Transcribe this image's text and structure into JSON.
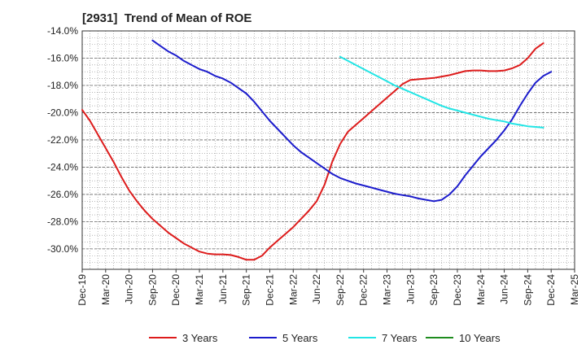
{
  "header": {
    "title": "[2931]  Trend of Mean of ROE"
  },
  "chart_data": {
    "type": "line",
    "title": "[2931]  Trend of Mean of ROE",
    "xlabel": "",
    "ylabel": "",
    "ylim": [
      -31.5,
      -14.0
    ],
    "y_ticks": [
      -14.0,
      -16.0,
      -18.0,
      -20.0,
      -22.0,
      -24.0,
      -26.0,
      -28.0,
      -30.0
    ],
    "y_tick_labels": [
      "-14.0%",
      "-16.0%",
      "-18.0%",
      "-20.0%",
      "-22.0%",
      "-24.0%",
      "-26.0%",
      "-28.0%",
      "-30.0%"
    ],
    "x_tick_labels": [
      "Dec-19",
      "Mar-20",
      "Jun-20",
      "Sep-20",
      "Dec-20",
      "Mar-21",
      "Jun-21",
      "Sep-21",
      "Dec-21",
      "Mar-22",
      "Jun-22",
      "Sep-22",
      "Dec-22",
      "Mar-23",
      "Jun-23",
      "Sep-23",
      "Dec-23",
      "Mar-24",
      "Jun-24",
      "Sep-24",
      "Dec-24",
      "Mar-25"
    ],
    "x_start": "Dec-19",
    "x_end": "Mar-25",
    "grid": true,
    "legend_position": "bottom",
    "series": [
      {
        "name": "3 Years",
        "color": "#dd1c1c",
        "points": [
          [
            "Dec-19",
            -19.8
          ],
          [
            "Jan-20",
            -20.6
          ],
          [
            "Feb-20",
            -21.6
          ],
          [
            "Mar-20",
            -22.6
          ],
          [
            "Apr-20",
            -23.6
          ],
          [
            "May-20",
            -24.7
          ],
          [
            "Jun-20",
            -25.7
          ],
          [
            "Jul-20",
            -26.5
          ],
          [
            "Aug-20",
            -27.2
          ],
          [
            "Sep-20",
            -27.8
          ],
          [
            "Oct-20",
            -28.3
          ],
          [
            "Nov-20",
            -28.8
          ],
          [
            "Dec-20",
            -29.2
          ],
          [
            "Jan-21",
            -29.6
          ],
          [
            "Feb-21",
            -29.9
          ],
          [
            "Mar-21",
            -30.2
          ],
          [
            "Apr-21",
            -30.35
          ],
          [
            "May-21",
            -30.4
          ],
          [
            "Jun-21",
            -30.4
          ],
          [
            "Jul-21",
            -30.45
          ],
          [
            "Aug-21",
            -30.6
          ],
          [
            "Sep-21",
            -30.8
          ],
          [
            "Oct-21",
            -30.8
          ],
          [
            "Nov-21",
            -30.5
          ],
          [
            "Dec-21",
            -29.9
          ],
          [
            "Jan-22",
            -29.4
          ],
          [
            "Feb-22",
            -28.9
          ],
          [
            "Mar-22",
            -28.4
          ],
          [
            "Apr-22",
            -27.8
          ],
          [
            "May-22",
            -27.2
          ],
          [
            "Jun-22",
            -26.5
          ],
          [
            "Jul-22",
            -25.3
          ],
          [
            "Aug-22",
            -23.6
          ],
          [
            "Sep-22",
            -22.3
          ],
          [
            "Oct-22",
            -21.4
          ],
          [
            "Nov-22",
            -20.9
          ],
          [
            "Dec-22",
            -20.4
          ],
          [
            "Jan-23",
            -19.9
          ],
          [
            "Feb-23",
            -19.4
          ],
          [
            "Mar-23",
            -18.9
          ],
          [
            "Apr-23",
            -18.4
          ],
          [
            "May-23",
            -17.9
          ],
          [
            "Jun-23",
            -17.6
          ],
          [
            "Jul-23",
            -17.55
          ],
          [
            "Aug-23",
            -17.5
          ],
          [
            "Sep-23",
            -17.45
          ],
          [
            "Oct-23",
            -17.35
          ],
          [
            "Nov-23",
            -17.25
          ],
          [
            "Dec-23",
            -17.1
          ],
          [
            "Jan-24",
            -16.95
          ],
          [
            "Feb-24",
            -16.9
          ],
          [
            "Mar-24",
            -16.9
          ],
          [
            "Apr-24",
            -16.95
          ],
          [
            "May-24",
            -16.95
          ],
          [
            "Jun-24",
            -16.9
          ],
          [
            "Jul-24",
            -16.75
          ],
          [
            "Aug-24",
            -16.5
          ],
          [
            "Sep-24",
            -16.0
          ],
          [
            "Oct-24",
            -15.3
          ],
          [
            "Nov-24",
            -14.9
          ]
        ]
      },
      {
        "name": "5 Years",
        "color": "#1c1ccc",
        "points": [
          [
            "Sep-20",
            -14.7
          ],
          [
            "Oct-20",
            -15.1
          ],
          [
            "Nov-20",
            -15.5
          ],
          [
            "Dec-20",
            -15.8
          ],
          [
            "Jan-21",
            -16.2
          ],
          [
            "Feb-21",
            -16.5
          ],
          [
            "Mar-21",
            -16.8
          ],
          [
            "Apr-21",
            -17.0
          ],
          [
            "May-21",
            -17.3
          ],
          [
            "Jun-21",
            -17.5
          ],
          [
            "Jul-21",
            -17.8
          ],
          [
            "Aug-21",
            -18.2
          ],
          [
            "Sep-21",
            -18.6
          ],
          [
            "Oct-21",
            -19.2
          ],
          [
            "Nov-21",
            -19.9
          ],
          [
            "Dec-21",
            -20.6
          ],
          [
            "Jan-22",
            -21.2
          ],
          [
            "Feb-22",
            -21.8
          ],
          [
            "Mar-22",
            -22.4
          ],
          [
            "Apr-22",
            -22.9
          ],
          [
            "May-22",
            -23.3
          ],
          [
            "Jun-22",
            -23.7
          ],
          [
            "Jul-22",
            -24.1
          ],
          [
            "Aug-22",
            -24.5
          ],
          [
            "Sep-22",
            -24.8
          ],
          [
            "Oct-22",
            -25.0
          ],
          [
            "Nov-22",
            -25.2
          ],
          [
            "Dec-22",
            -25.35
          ],
          [
            "Jan-23",
            -25.5
          ],
          [
            "Feb-23",
            -25.65
          ],
          [
            "Mar-23",
            -25.8
          ],
          [
            "Apr-23",
            -25.95
          ],
          [
            "May-23",
            -26.05
          ],
          [
            "Jun-23",
            -26.15
          ],
          [
            "Jul-23",
            -26.3
          ],
          [
            "Aug-23",
            -26.4
          ],
          [
            "Sep-23",
            -26.5
          ],
          [
            "Oct-23",
            -26.4
          ],
          [
            "Nov-23",
            -26.0
          ],
          [
            "Dec-23",
            -25.4
          ],
          [
            "Jan-24",
            -24.6
          ],
          [
            "Feb-24",
            -23.9
          ],
          [
            "Mar-24",
            -23.2
          ],
          [
            "Apr-24",
            -22.6
          ],
          [
            "May-24",
            -22.0
          ],
          [
            "Jun-24",
            -21.3
          ],
          [
            "Jul-24",
            -20.5
          ],
          [
            "Aug-24",
            -19.5
          ],
          [
            "Sep-24",
            -18.6
          ],
          [
            "Oct-24",
            -17.8
          ],
          [
            "Nov-24",
            -17.3
          ],
          [
            "Dec-24",
            -17.0
          ]
        ]
      },
      {
        "name": "7 Years",
        "color": "#22e5e5",
        "points": [
          [
            "Sep-22",
            -15.9
          ],
          [
            "Oct-22",
            -16.2
          ],
          [
            "Nov-22",
            -16.5
          ],
          [
            "Dec-22",
            -16.8
          ],
          [
            "Jan-23",
            -17.1
          ],
          [
            "Feb-23",
            -17.4
          ],
          [
            "Mar-23",
            -17.7
          ],
          [
            "Apr-23",
            -18.0
          ],
          [
            "May-23",
            -18.25
          ],
          [
            "Jun-23",
            -18.5
          ],
          [
            "Jul-23",
            -18.75
          ],
          [
            "Aug-23",
            -19.0
          ],
          [
            "Sep-23",
            -19.25
          ],
          [
            "Oct-23",
            -19.5
          ],
          [
            "Nov-23",
            -19.7
          ],
          [
            "Dec-23",
            -19.85
          ],
          [
            "Jan-24",
            -20.0
          ],
          [
            "Feb-24",
            -20.15
          ],
          [
            "Mar-24",
            -20.3
          ],
          [
            "Apr-24",
            -20.45
          ],
          [
            "May-24",
            -20.55
          ],
          [
            "Jun-24",
            -20.65
          ],
          [
            "Jul-24",
            -20.8
          ],
          [
            "Aug-24",
            -20.9
          ],
          [
            "Sep-24",
            -21.0
          ],
          [
            "Oct-24",
            -21.05
          ],
          [
            "Nov-24",
            -21.1
          ]
        ]
      },
      {
        "name": "10 Years",
        "color": "#1e8c1e",
        "points": []
      }
    ]
  }
}
